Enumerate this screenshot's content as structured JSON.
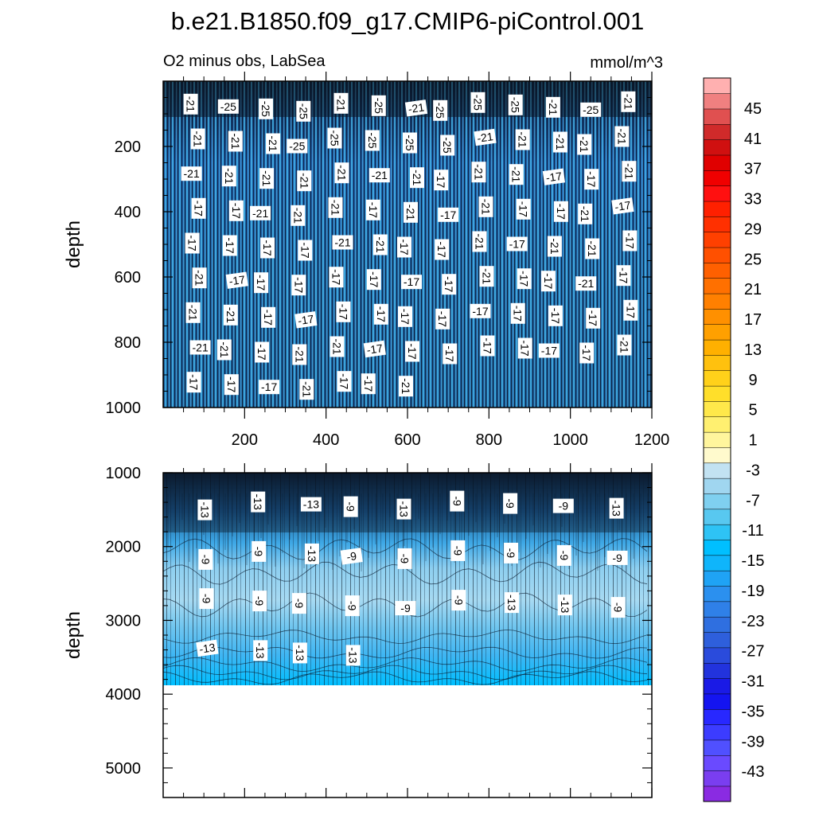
{
  "chart_data": {
    "type": "heatmap",
    "title": "b.e21.B1850.f09_g17.CMIP6-piControl.001",
    "subtitle_left": "O2 minus obs, LabSea",
    "units": "mmol/m^3",
    "colorbar": {
      "tick_labels": [
        "45",
        "41",
        "37",
        "33",
        "29",
        "25",
        "21",
        "17",
        "13",
        "9",
        "5",
        "1",
        "-3",
        "-7",
        "-11",
        "-15",
        "-19",
        "-23",
        "-27",
        "-31",
        "-35",
        "-39",
        "-43"
      ],
      "levels_min": -47,
      "levels_max": 49,
      "level_step": 2,
      "colors": [
        "#8a2be2",
        "#7a3ef0",
        "#6a4aff",
        "#5050ff",
        "#3c3cff",
        "#2828ff",
        "#1414f0",
        "#1a1ae6",
        "#2233dd",
        "#2a4bdc",
        "#2e5fdc",
        "#2f6fe0",
        "#2f80e8",
        "#2b90ef",
        "#1fa3f5",
        "#0fb5fb",
        "#00bfff",
        "#2ec3f5",
        "#58c8f0",
        "#7fd0f0",
        "#a0d6f0",
        "#c2e2f2",
        "#fffacd",
        "#fff59d",
        "#fff070",
        "#ffe84a",
        "#ffdf2a",
        "#ffd11a",
        "#ffc10e",
        "#ffb000",
        "#ffa000",
        "#ff9000",
        "#ff8000",
        "#ff7000",
        "#ff6000",
        "#ff5000",
        "#ff4000",
        "#ff3000",
        "#ff2000",
        "#ff1010",
        "#f00000",
        "#e00000",
        "#d01010",
        "#d02a2a",
        "#e05050",
        "#f08080",
        "#ffb0b0"
      ]
    },
    "panels": [
      {
        "name": "upper",
        "ylabel": "depth",
        "ylim": [
          0,
          1000
        ],
        "xlim": [
          0,
          1200
        ],
        "yticks": [
          "200",
          "400",
          "600",
          "800",
          "1000"
        ],
        "xticks": [
          "200",
          "400",
          "600",
          "800",
          "1000",
          "1200"
        ],
        "contour_labels": [
          "-21",
          "-25",
          "-25",
          "-25",
          "-21",
          "-25",
          "-21",
          "-25",
          "-25",
          "-25",
          "-21",
          "-25",
          "-21",
          "-21",
          "-21",
          "-21",
          "-25",
          "-25",
          "-25",
          "-25",
          "-25",
          "-21",
          "-21",
          "-21",
          "-21",
          "-21",
          "-21",
          "-21",
          "-21",
          "-21",
          "-21",
          "-21",
          "-21",
          "-17",
          "-21",
          "-21",
          "-17",
          "-17",
          "-21",
          "-17",
          "-17",
          "-21",
          "-21",
          "-21",
          "-17",
          "-21",
          "-17",
          "-21",
          "-17",
          "-17",
          "-21",
          "-17",
          "-17",
          "-17",
          "-17",
          "-17",
          "-21",
          "-21",
          "-17",
          "-17",
          "-21",
          "-17",
          "-21",
          "-21",
          "-17",
          "-21",
          "-17",
          "-17",
          "-17",
          "-17",
          "-17",
          "-17",
          "-17",
          "-21",
          "-17",
          "-17",
          "-21",
          "-17",
          "-21",
          "-21",
          "-17",
          "-17",
          "-17",
          "-17",
          "-17",
          "-17",
          "-17",
          "-17",
          "-17",
          "-17",
          "-17",
          "-21",
          "-21",
          "-17",
          "-21",
          "-21",
          "-17",
          "-17",
          "-17",
          "-17",
          "-17",
          "-17",
          "-17",
          "-21",
          "-17",
          "-17",
          "-17",
          "-21",
          "-17",
          "-17",
          "-21"
        ]
      },
      {
        "name": "lower",
        "ylabel": "depth",
        "ylim": [
          1000,
          5400
        ],
        "yticks": [
          "1000",
          "2000",
          "3000",
          "4000",
          "5000"
        ],
        "data_bottom": 3870,
        "contour_labels": [
          "-13",
          "-13",
          "-13",
          "-9",
          "-13",
          "-9",
          "-9",
          "-9",
          "-13",
          "-9",
          "-9",
          "-13",
          "-9",
          "-9",
          "-9",
          "-9",
          "-9",
          "-9",
          "-9",
          "-9",
          "-9",
          "-9",
          "-9",
          "-9",
          "-13",
          "-13",
          "-9",
          "-13",
          "-13",
          "-13",
          "-13"
        ]
      }
    ]
  }
}
